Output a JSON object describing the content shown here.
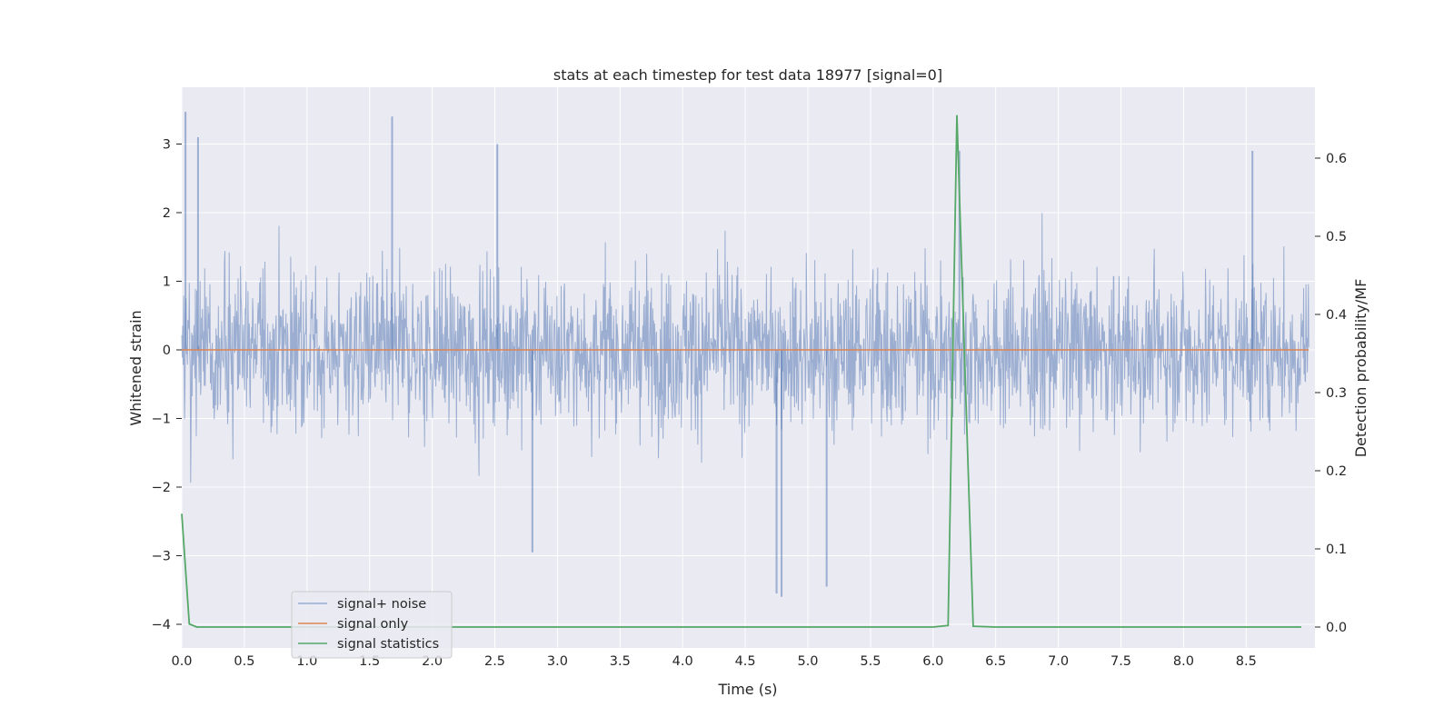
{
  "chart_data": {
    "type": "line",
    "title": "stats at each timestep for test data 18977 [signal=0]",
    "xlabel": "Time (s)",
    "ylabel_left": "Whitened strain",
    "ylabel_right": "Detection probability/MF",
    "xlim": [
      0.0,
      9.0
    ],
    "ylim_left": [
      -4.3,
      3.8
    ],
    "ylim_right": [
      -0.03,
      0.69
    ],
    "xticks": [
      "0.0",
      "0.5",
      "1.0",
      "1.5",
      "2.0",
      "2.5",
      "3.0",
      "3.5",
      "4.0",
      "4.5",
      "5.0",
      "5.5",
      "6.0",
      "6.5",
      "7.0",
      "7.5",
      "8.0",
      "8.5"
    ],
    "xtick_values": [
      0.0,
      0.5,
      1.0,
      1.5,
      2.0,
      2.5,
      3.0,
      3.5,
      4.0,
      4.5,
      5.0,
      5.5,
      6.0,
      6.5,
      7.0,
      7.5,
      8.0,
      8.5
    ],
    "yticks_left": [
      "−4",
      "−3",
      "−2",
      "−1",
      "0",
      "1",
      "2",
      "3"
    ],
    "ytick_values_left": [
      -4,
      -3,
      -2,
      -1,
      0,
      1,
      2,
      3
    ],
    "yticks_right": [
      "0.0",
      "0.1",
      "0.2",
      "0.3",
      "0.4",
      "0.5",
      "0.6"
    ],
    "ytick_values_right": [
      0.0,
      0.1,
      0.2,
      0.3,
      0.4,
      0.5,
      0.6
    ],
    "grid": true,
    "legend_position": "lower-left",
    "colors": {
      "background": "#eaeaf2",
      "grid": "#ffffff",
      "noise": "#4c72b0",
      "signal_only": "#dd8452",
      "statistics": "#55a868"
    },
    "series": [
      {
        "name": "signal+ noise",
        "axis": "left",
        "note_values": "dense noise, approx. range",
        "range": [
          -3.6,
          3.47
        ],
        "typical_band": [
          -1.7,
          1.6
        ]
      },
      {
        "name": "signal only",
        "axis": "left",
        "x": [
          0.0,
          9.0
        ],
        "y": [
          0.0,
          0.0
        ]
      },
      {
        "name": "signal statistics",
        "axis": "right",
        "x": [
          0.0,
          0.06,
          0.12,
          0.5,
          1.0,
          2.0,
          3.0,
          4.0,
          5.0,
          5.5,
          6.0,
          6.12,
          6.19,
          6.25,
          6.32,
          6.5,
          7.0,
          8.0,
          8.94
        ],
        "y": [
          0.145,
          0.004,
          0.0,
          0.0,
          0.0,
          0.0,
          0.0,
          0.0,
          0.0,
          0.0,
          0.0,
          0.002,
          0.655,
          0.35,
          0.001,
          0.0,
          0.0,
          0.0,
          0.0
        ]
      }
    ]
  }
}
